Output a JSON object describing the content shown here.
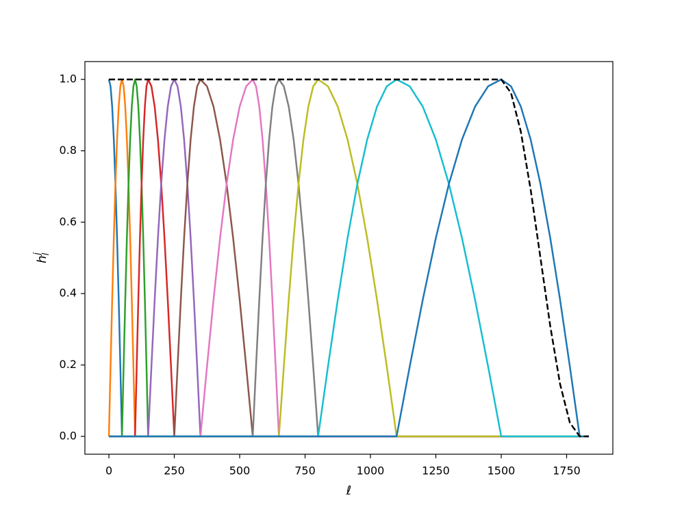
{
  "chart_data": {
    "type": "line",
    "xlabel": "ℓ",
    "ylabel": "h",
    "ylabel_sub": "l",
    "ylabel_sup": "j",
    "xlim": [
      -91.75,
      1926.75
    ],
    "ylim": [
      -0.05,
      1.05
    ],
    "xticks": [
      0,
      250,
      500,
      750,
      1000,
      1250,
      1500,
      1750
    ],
    "yticks": [
      {
        "value": 0,
        "label": "0.0"
      },
      0.2,
      0.4,
      0.6,
      0.8,
      {
        "value": 1,
        "label": "1.0"
      }
    ],
    "grid": false,
    "series": [
      {
        "color": "#1f77b4",
        "x": [
          0,
          6.25,
          12.5,
          18.75,
          25,
          31.25,
          37.5,
          43.75,
          50,
          1835
        ],
        "values": [
          1,
          0.9808,
          0.9239,
          0.8315,
          0.7071,
          0.5556,
          0.3827,
          0.1951,
          0,
          0
        ]
      },
      {
        "color": "#ff7f0e",
        "x": [
          0,
          6.25,
          12.5,
          18.75,
          25,
          31.25,
          37.5,
          43.75,
          50,
          56.25,
          62.5,
          68.75,
          75,
          81.25,
          87.5,
          93.75,
          100,
          1835
        ],
        "values": [
          0,
          0.1951,
          0.3827,
          0.5556,
          0.7071,
          0.8315,
          0.9239,
          0.9808,
          1,
          0.9808,
          0.9239,
          0.8315,
          0.7071,
          0.5556,
          0.3827,
          0.1951,
          0,
          0
        ]
      },
      {
        "color": "#2ca02c",
        "x": [
          0,
          50,
          56.25,
          62.5,
          68.75,
          75,
          81.25,
          87.5,
          93.75,
          100,
          106.25,
          112.5,
          118.75,
          125,
          131.25,
          137.5,
          143.75,
          150,
          1835
        ],
        "values": [
          0,
          0,
          0.1951,
          0.3827,
          0.5556,
          0.7071,
          0.8315,
          0.9239,
          0.9808,
          1,
          0.9808,
          0.9239,
          0.8315,
          0.7071,
          0.5556,
          0.3827,
          0.1951,
          0,
          0
        ]
      },
      {
        "color": "#d62728",
        "x": [
          0,
          100,
          106.25,
          112.5,
          118.75,
          125,
          131.25,
          137.5,
          143.75,
          150,
          162.5,
          175,
          187.5,
          200,
          212.5,
          225,
          237.5,
          250,
          1835
        ],
        "values": [
          0,
          0,
          0.1951,
          0.3827,
          0.5556,
          0.7071,
          0.8315,
          0.9239,
          0.9808,
          1,
          0.9808,
          0.9239,
          0.8315,
          0.7071,
          0.5556,
          0.3827,
          0.1951,
          0,
          0
        ]
      },
      {
        "color": "#9467bd",
        "x": [
          0,
          150,
          162.5,
          175,
          187.5,
          200,
          212.5,
          225,
          237.5,
          250,
          262.5,
          275,
          287.5,
          300,
          312.5,
          325,
          337.5,
          350,
          1835
        ],
        "values": [
          0,
          0,
          0.1951,
          0.3827,
          0.5556,
          0.7071,
          0.8315,
          0.9239,
          0.9808,
          1,
          0.9808,
          0.9239,
          0.8315,
          0.7071,
          0.5556,
          0.3827,
          0.1951,
          0,
          0
        ]
      },
      {
        "color": "#8c564b",
        "x": [
          0,
          250,
          262.5,
          275,
          287.5,
          300,
          312.5,
          325,
          337.5,
          350,
          375,
          400,
          425,
          450,
          475,
          500,
          525,
          550,
          1835
        ],
        "values": [
          0,
          0,
          0.1951,
          0.3827,
          0.5556,
          0.7071,
          0.8315,
          0.9239,
          0.9808,
          1,
          0.9808,
          0.9239,
          0.8315,
          0.7071,
          0.5556,
          0.3827,
          0.1951,
          0,
          0
        ]
      },
      {
        "color": "#e377c2",
        "x": [
          0,
          350,
          375,
          400,
          425,
          450,
          475,
          500,
          525,
          550,
          562.5,
          575,
          587.5,
          600,
          612.5,
          625,
          637.5,
          650,
          1835
        ],
        "values": [
          0,
          0,
          0.1951,
          0.3827,
          0.5556,
          0.7071,
          0.8315,
          0.9239,
          0.9808,
          1,
          0.9808,
          0.9239,
          0.8315,
          0.7071,
          0.5556,
          0.3827,
          0.1951,
          0,
          0
        ]
      },
      {
        "color": "#7f7f7f",
        "x": [
          0,
          550,
          562.5,
          575,
          587.5,
          600,
          612.5,
          625,
          637.5,
          650,
          668.75,
          687.5,
          706.25,
          725,
          743.75,
          762.5,
          781.25,
          800,
          1835
        ],
        "values": [
          0,
          0,
          0.1951,
          0.3827,
          0.5556,
          0.7071,
          0.8315,
          0.9239,
          0.9808,
          1,
          0.9808,
          0.9239,
          0.8315,
          0.7071,
          0.5556,
          0.3827,
          0.1951,
          0,
          0
        ]
      },
      {
        "color": "#bcbd22",
        "x": [
          0,
          650,
          668.75,
          687.5,
          706.25,
          725,
          743.75,
          762.5,
          781.25,
          800,
          837.5,
          875,
          912.5,
          950,
          987.5,
          1025,
          1062.5,
          1100,
          1835
        ],
        "values": [
          0,
          0,
          0.1951,
          0.3827,
          0.5556,
          0.7071,
          0.8315,
          0.9239,
          0.9808,
          1,
          0.9808,
          0.9239,
          0.8315,
          0.7071,
          0.5556,
          0.3827,
          0.1951,
          0,
          0
        ]
      },
      {
        "color": "#17becf",
        "x": [
          0,
          800,
          837.5,
          875,
          912.5,
          950,
          987.5,
          1025,
          1062.5,
          1100,
          1150,
          1200,
          1250,
          1300,
          1350,
          1400,
          1450,
          1500,
          1835
        ],
        "values": [
          0,
          0,
          0.1951,
          0.3827,
          0.5556,
          0.7071,
          0.8315,
          0.9239,
          0.9808,
          1,
          0.9808,
          0.9239,
          0.8315,
          0.7071,
          0.5556,
          0.3827,
          0.1951,
          0,
          0
        ]
      },
      {
        "color": "#1f77b4",
        "x": [
          0,
          1100,
          1150,
          1200,
          1250,
          1300,
          1350,
          1400,
          1450,
          1500,
          1537.5,
          1575,
          1612.5,
          1650,
          1687.5,
          1725,
          1762.5,
          1800,
          1835
        ],
        "values": [
          0,
          0,
          0.1951,
          0.3827,
          0.5556,
          0.7071,
          0.8315,
          0.9239,
          0.9808,
          1,
          0.9808,
          0.9239,
          0.8315,
          0.7071,
          0.5556,
          0.3827,
          0.1951,
          0,
          0
        ]
      },
      {
        "color": "#000000",
        "linestyle": "dashed",
        "x": [
          0,
          1500,
          1537.5,
          1575,
          1612.5,
          1650,
          1687.5,
          1725,
          1762.5,
          1800,
          1835
        ],
        "values": [
          1,
          1,
          0.9619,
          0.8536,
          0.6913,
          0.5,
          0.3087,
          0.1464,
          0.0381,
          0,
          0
        ]
      }
    ]
  }
}
